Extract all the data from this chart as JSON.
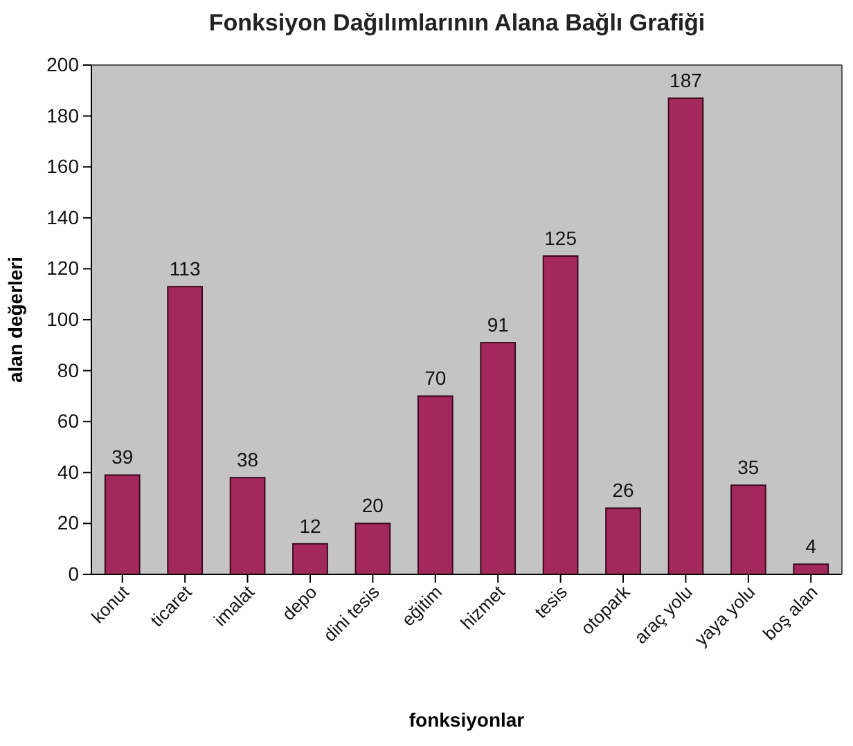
{
  "chart_data": {
    "type": "bar",
    "title": "Fonksiyon Dağılımlarının Alana Bağlı Grafiği",
    "xlabel": "fonksiyonlar",
    "ylabel": "alan değerleri",
    "categories": [
      "konut",
      "ticaret",
      "imalat",
      "depo",
      "dini tesis",
      "eğitim",
      "hizmet",
      "tesis",
      "otopark",
      "araç yolu",
      "yaya yolu",
      "boş alan"
    ],
    "values": [
      39,
      113,
      38,
      12,
      20,
      70,
      91,
      125,
      26,
      187,
      35,
      4
    ],
    "color": "#a3295c",
    "ylim": [
      0,
      200
    ],
    "yticks": [
      0,
      20,
      40,
      60,
      80,
      100,
      120,
      140,
      160,
      180,
      200
    ],
    "data_labels": true
  }
}
